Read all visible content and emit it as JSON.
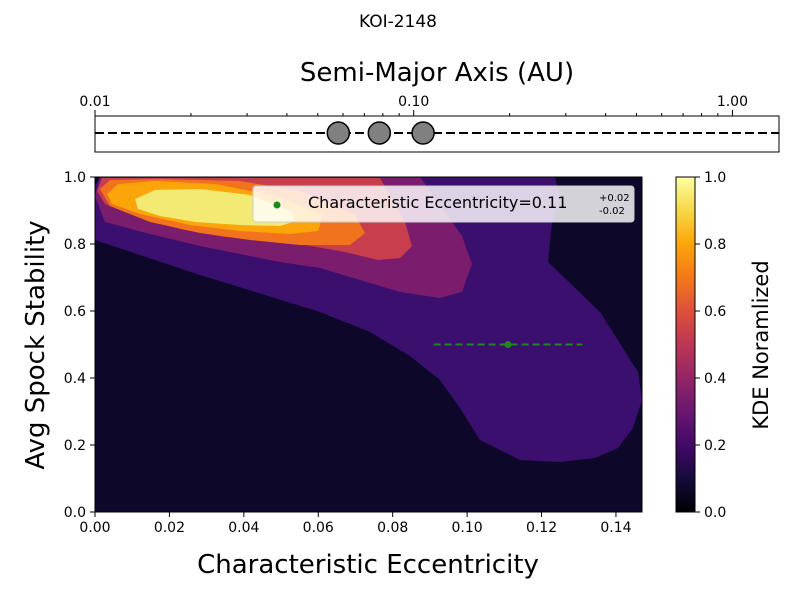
{
  "figure_title": "KOI-2148",
  "top_axis": {
    "label": "Semi-Major Axis (AU)",
    "scale": "log",
    "xlim": [
      0.01,
      1.4
    ],
    "major_ticks": [
      0.01,
      0.1,
      1.0
    ],
    "major_tick_labels": [
      "0.01",
      "0.10",
      "1.00"
    ],
    "planets_au": [
      0.058,
      0.078,
      0.107
    ],
    "line_style": "dashed"
  },
  "chart_data": {
    "type": "heatmap",
    "subtype": "filled-contour KDE",
    "xlabel": "Characteristic Eccentricity",
    "ylabel": "Avg Spock Stability",
    "xlim": [
      0.0,
      0.147
    ],
    "ylim": [
      0.0,
      1.0
    ],
    "x_ticks": [
      "0.00",
      "0.02",
      "0.04",
      "0.06",
      "0.08",
      "0.10",
      "0.12",
      "0.14"
    ],
    "y_ticks": [
      "0.0",
      "0.2",
      "0.4",
      "0.6",
      "0.8",
      "1.0"
    ],
    "grid": false,
    "contour_levels": [
      0.0,
      0.1,
      0.2,
      0.4,
      0.6,
      0.8,
      1.0
    ],
    "kde_peak": {
      "x": 0.03,
      "y": 0.94
    },
    "point_estimate": {
      "x": 0.111,
      "y": 0.5,
      "x_err_minus": 0.02,
      "x_err_plus": 0.02,
      "color": "#1a8a1a"
    },
    "legend": {
      "label": "Characteristic Eccentricity=0.11",
      "sup": "+0.02",
      "sub": "-0.02",
      "placement": "top-right"
    },
    "colorbar": {
      "label": "KDE Noramlized",
      "colormap": "inferno",
      "range": [
        0.0,
        1.0
      ],
      "ticks": [
        "0.0",
        "0.2",
        "0.4",
        "0.6",
        "0.8",
        "1.0"
      ]
    }
  }
}
